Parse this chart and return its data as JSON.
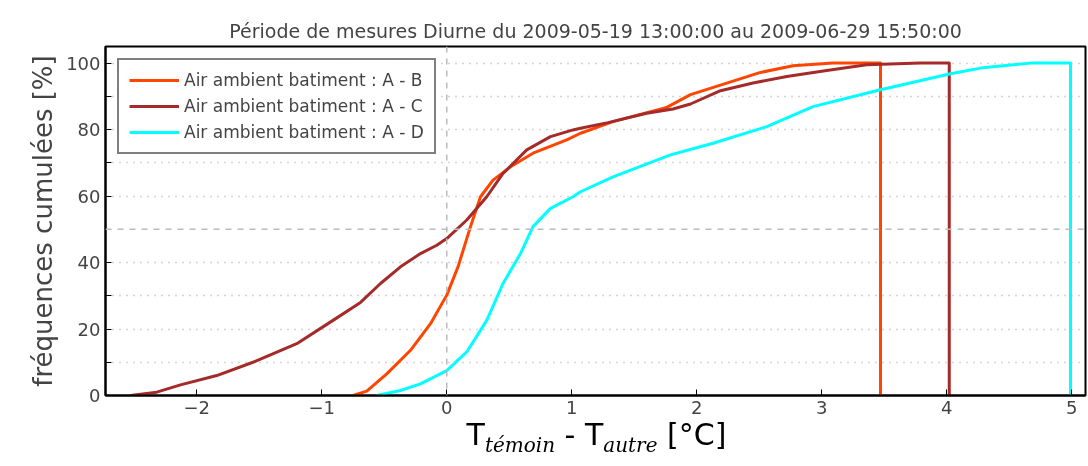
{
  "chart_data": {
    "type": "line",
    "title": "Période de mesures Diurne du 2009-05-19 13:00:00 au 2009-06-29 15:50:00",
    "xlabel": "T$_{témoin}$ - T$_{autre}$ [°C]",
    "ylabel": "fréquences cumulées [%]",
    "xlim": [
      -2.73,
      5.11
    ],
    "ylim": [
      0,
      105
    ],
    "xticks": [
      -2,
      -1,
      0,
      1,
      2,
      3,
      4,
      5
    ],
    "yticks": [
      0,
      {
        "value": 10,
        "label": null
      },
      20,
      {
        "value": 30,
        "label": null
      },
      40,
      60,
      {
        "value": 70,
        "label": null
      },
      80,
      {
        "value": 90,
        "label": null
      },
      100
    ],
    "grid": "y",
    "legend": "top left",
    "line_style": "solid",
    "ref_lines": [
      {
        "axis": "x",
        "value": 0,
        "label": null,
        "color": "#bbbbbb",
        "line_style": "dashed"
      },
      {
        "axis": "y",
        "value": 50,
        "label": null,
        "color": "#bbbbbb",
        "line_style": "dashed"
      }
    ],
    "series": [
      {
        "name": "Air ambient batiment : A - B",
        "color": "#ff4500",
        "x": [
          -0.75,
          -0.64,
          -0.48,
          -0.29,
          -0.13,
          0,
          0.09,
          0.19,
          0.27,
          0.37,
          0.51,
          0.69,
          0.96,
          1.07,
          1.33,
          1.76,
          1.95,
          2.24,
          2.51,
          2.77,
          3.09,
          3.47,
          3.47
        ],
        "values": [
          0,
          1.3,
          6.5,
          13.6,
          21.6,
          30.2,
          38.7,
          50.8,
          59.8,
          64.8,
          68.8,
          72.9,
          76.9,
          78.9,
          82.4,
          86.7,
          90.5,
          94,
          97.2,
          99.2,
          100,
          100,
          0
        ]
      },
      {
        "name": "Air ambient batiment : A - C",
        "color": "#a52a2a",
        "x": [
          -2.53,
          -2.32,
          -2.13,
          -1.84,
          -1.55,
          -1.2,
          -0.91,
          -0.69,
          -0.53,
          -0.37,
          -0.21,
          -0.08,
          0,
          0.16,
          0.32,
          0.45,
          0.64,
          0.83,
          1.01,
          1.07,
          1.29,
          1.6,
          1.81,
          1.95,
          2.19,
          2.45,
          2.72,
          3.04,
          3.36,
          3.79,
          4.02,
          4.02
        ],
        "values": [
          0,
          1,
          3.2,
          6,
          10,
          15.6,
          22.6,
          28,
          33.7,
          38.7,
          42.7,
          45.2,
          47.2,
          52.8,
          59.8,
          66.8,
          73.9,
          77.9,
          79.9,
          80.4,
          82.1,
          84.9,
          86.2,
          87.7,
          91.7,
          94,
          96,
          97.8,
          99.5,
          100,
          100,
          0
        ]
      },
      {
        "name": "Air ambient batiment : A - D",
        "color": "#00ffff",
        "x": [
          -0.56,
          -0.37,
          -0.21,
          0,
          0.16,
          0.32,
          0.45,
          0.59,
          0.69,
          0.83,
          1.01,
          1.07,
          1.33,
          1.79,
          2.13,
          2.56,
          2.93,
          3.47,
          4.03,
          4.27,
          4.67,
          4.99,
          4.99
        ],
        "values": [
          0,
          1.5,
          3.5,
          7.5,
          13.1,
          22.6,
          33.7,
          42.7,
          50.8,
          56.3,
          59.8,
          61.3,
          65.8,
          72.4,
          75.9,
          80.9,
          86.9,
          92,
          96.8,
          98.5,
          100,
          100,
          0
        ]
      }
    ]
  }
}
